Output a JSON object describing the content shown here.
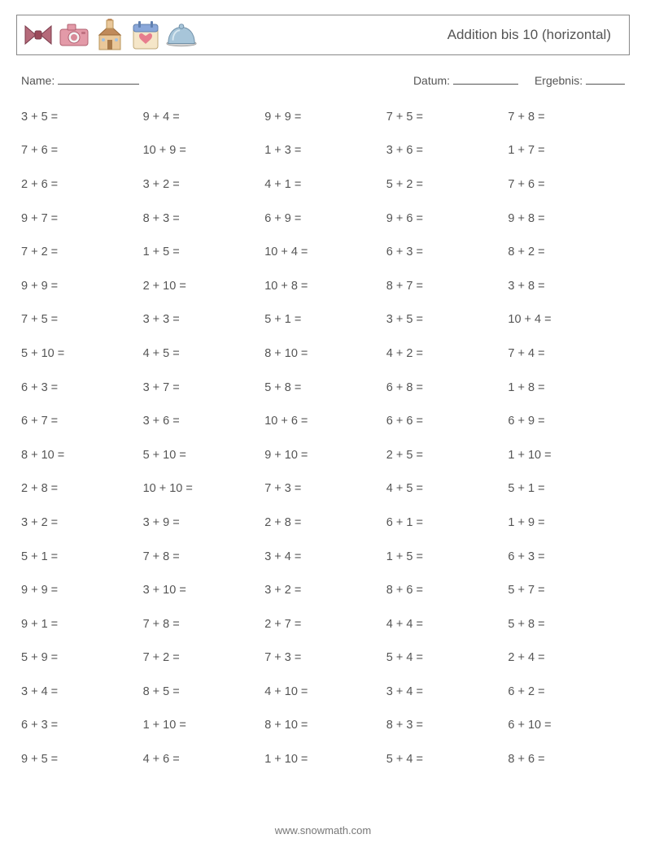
{
  "header": {
    "title": "Addition bis 10 (horizontal)",
    "icons": [
      "bowtie-icon",
      "camera-icon",
      "church-icon",
      "calendar-heart-icon",
      "cloche-icon"
    ]
  },
  "info": {
    "name_label": "Name:",
    "date_label": "Datum:",
    "result_label": "Ergebnis:"
  },
  "style": {
    "text_color": "#555555",
    "border_color": "#888888",
    "fontsize_title": 17,
    "fontsize_body": 14.5,
    "columns": 5,
    "rows": 20,
    "icon_colors": {
      "bowtie": "#b56a7a",
      "camera": "#e39aa8",
      "church_wall": "#eac89a",
      "church_roof": "#c08a5a",
      "calendar_top": "#8aa7d9",
      "calendar_body": "#f5e6c8",
      "calendar_heart": "#e77d8e",
      "cloche": "#a7c5d9"
    }
  },
  "problems": [
    [
      "3 + 5 =",
      "9 + 4 =",
      "9 + 9 =",
      "7 + 5 =",
      "7 + 8 ="
    ],
    [
      "7 + 6 =",
      "10 + 9 =",
      "1 + 3 =",
      "3 + 6 =",
      "1 + 7 ="
    ],
    [
      "2 + 6 =",
      "3 + 2 =",
      "4 + 1 =",
      "5 + 2 =",
      "7 + 6 ="
    ],
    [
      "9 + 7 =",
      "8 + 3 =",
      "6 + 9 =",
      "9 + 6 =",
      "9 + 8 ="
    ],
    [
      "7 + 2 =",
      "1 + 5 =",
      "10 + 4 =",
      "6 + 3 =",
      "8 + 2 ="
    ],
    [
      "9 + 9 =",
      "2 + 10 =",
      "10 + 8 =",
      "8 + 7 =",
      "3 + 8 ="
    ],
    [
      "7 + 5 =",
      "3 + 3 =",
      "5 + 1 =",
      "3 + 5 =",
      "10 + 4 ="
    ],
    [
      "5 + 10 =",
      "4 + 5 =",
      "8 + 10 =",
      "4 + 2 =",
      "7 + 4 ="
    ],
    [
      "6 + 3 =",
      "3 + 7 =",
      "5 + 8 =",
      "6 + 8 =",
      "1 + 8 ="
    ],
    [
      "6 + 7 =",
      "3 + 6 =",
      "10 + 6 =",
      "6 + 6 =",
      "6 + 9 ="
    ],
    [
      "8 + 10 =",
      "5 + 10 =",
      "9 + 10 =",
      "2 + 5 =",
      "1 + 10 ="
    ],
    [
      "2 + 8 =",
      "10 + 10 =",
      "7 + 3 =",
      "4 + 5 =",
      "5 + 1 ="
    ],
    [
      "3 + 2 =",
      "3 + 9 =",
      "2 + 8 =",
      "6 + 1 =",
      "1 + 9 ="
    ],
    [
      "5 + 1 =",
      "7 + 8 =",
      "3 + 4 =",
      "1 + 5 =",
      "6 + 3 ="
    ],
    [
      "9 + 9 =",
      "3 + 10 =",
      "3 + 2 =",
      "8 + 6 =",
      "5 + 7 ="
    ],
    [
      "9 + 1 =",
      "7 + 8 =",
      "2 + 7 =",
      "4 + 4 =",
      "5 + 8 ="
    ],
    [
      "5 + 9 =",
      "7 + 2 =",
      "7 + 3 =",
      "5 + 4 =",
      "2 + 4 ="
    ],
    [
      "3 + 4 =",
      "8 + 5 =",
      "4 + 10 =",
      "3 + 4 =",
      "6 + 2 ="
    ],
    [
      "6 + 3 =",
      "1 + 10 =",
      "8 + 10 =",
      "8 + 3 =",
      "6 + 10 ="
    ],
    [
      "9 + 5 =",
      "4 + 6 =",
      "1 + 10 =",
      "5 + 4 =",
      "8 + 6 ="
    ]
  ],
  "footer": "www.snowmath.com"
}
